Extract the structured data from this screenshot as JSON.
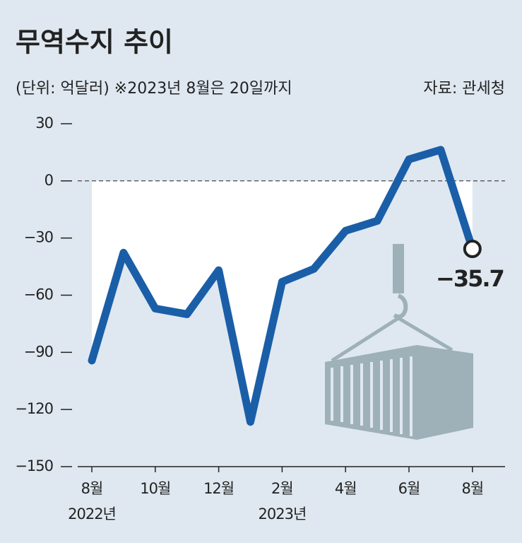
{
  "chart_data": {
    "type": "line",
    "title": "무역수지 추이",
    "subtitle": "(단위: 억달러) ※2023년 8월은 20일까지",
    "source": "자료: 관세청",
    "categories": [
      "8월",
      null,
      "10월",
      null,
      "12월",
      null,
      "2월",
      null,
      "4월",
      null,
      "6월",
      null,
      "8월"
    ],
    "category_years": [
      "2022년",
      null,
      null,
      null,
      null,
      null,
      "2023년",
      null,
      null,
      null,
      null,
      null,
      null
    ],
    "values": [
      -94.3,
      -37.7,
      -67,
      -70,
      -46.9,
      -126.5,
      -53,
      -46.2,
      -26.2,
      -21,
      11.3,
      16.3,
      -35.7
    ],
    "value_labels": [
      null,
      null,
      null,
      null,
      null,
      null,
      null,
      null,
      null,
      null,
      null,
      null,
      "−35.7"
    ],
    "color": "#1a5ea8",
    "ylim": [
      -150,
      30
    ],
    "yticks": [
      {
        "value": -150,
        "label": "−150"
      },
      {
        "value": -120,
        "label": "−120"
      },
      {
        "value": -90,
        "label": "−90"
      },
      {
        "value": -60,
        "label": "−60"
      },
      {
        "value": -30,
        "label": "−30"
      },
      0,
      30
    ]
  }
}
